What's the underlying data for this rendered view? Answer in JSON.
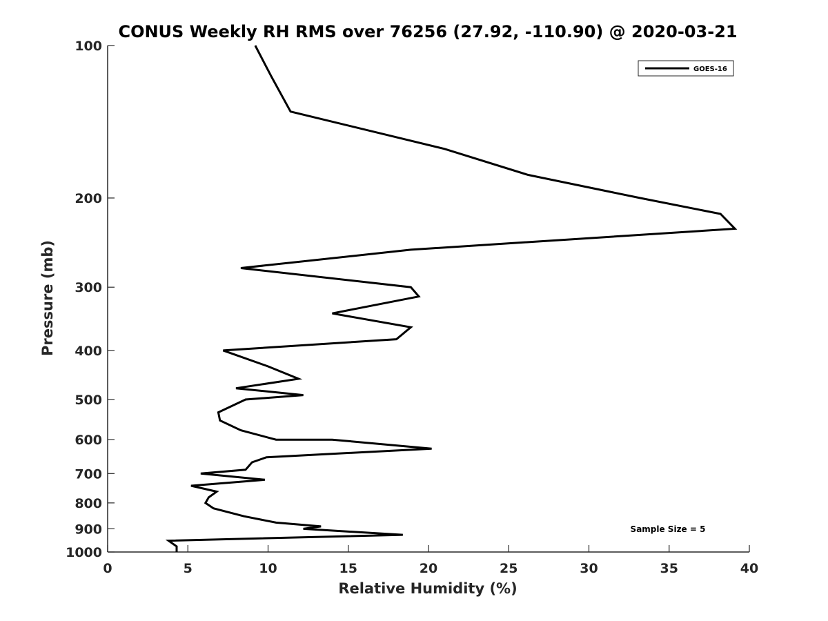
{
  "chart_data": {
    "type": "line",
    "title": "CONUS Weekly RH RMS over 76256 (27.92, -110.90) @ 2020-03-21",
    "xlabel": "Relative Humidity (%)",
    "ylabel": "Pressure (mb)",
    "xlim": [
      0,
      40
    ],
    "ylim": [
      100,
      1000
    ],
    "y_scale": "log",
    "y_reversed": true,
    "x_ticks": [
      0,
      5,
      10,
      15,
      20,
      25,
      30,
      35,
      40
    ],
    "x_tick_labels": [
      "0",
      "5",
      "10",
      "15",
      "20",
      "25",
      "30",
      "35",
      "40"
    ],
    "y_ticks": [
      100,
      200,
      300,
      400,
      500,
      600,
      700,
      800,
      900,
      1000
    ],
    "y_tick_labels": [
      "100",
      "200",
      "300",
      "400",
      "500",
      "600",
      "700",
      "800",
      "900",
      "1000"
    ],
    "grid": false,
    "legend_position": "top-right",
    "annotation": "Sample Size = 5",
    "series": [
      {
        "name": "GOES-16",
        "color": "#000000",
        "x": [
          9.2,
          10.2,
          11.4,
          21.0,
          26.2,
          33.2,
          38.2,
          39.1,
          18.9,
          8.3,
          18.9,
          19.4,
          14.0,
          18.9,
          18.0,
          7.2,
          10.0,
          11.9,
          8.0,
          12.2,
          8.6,
          6.9,
          7.0,
          8.3,
          10.5,
          14.0,
          20.2,
          9.9,
          9.0,
          8.6,
          5.8,
          9.8,
          5.2,
          6.8,
          6.3,
          6.1,
          6.6,
          8.5,
          10.5,
          13.3,
          12.2,
          18.4,
          3.8,
          4.3,
          4.3
        ],
        "y": [
          100,
          115,
          135,
          160,
          180,
          200,
          215,
          230,
          253,
          275,
          300,
          313,
          338,
          360,
          380,
          400,
          430,
          455,
          475,
          490,
          500,
          530,
          550,
          575,
          600,
          600,
          625,
          650,
          665,
          688,
          700,
          720,
          740,
          760,
          780,
          800,
          820,
          850,
          875,
          890,
          900,
          925,
          950,
          975,
          1000
        ]
      }
    ]
  }
}
